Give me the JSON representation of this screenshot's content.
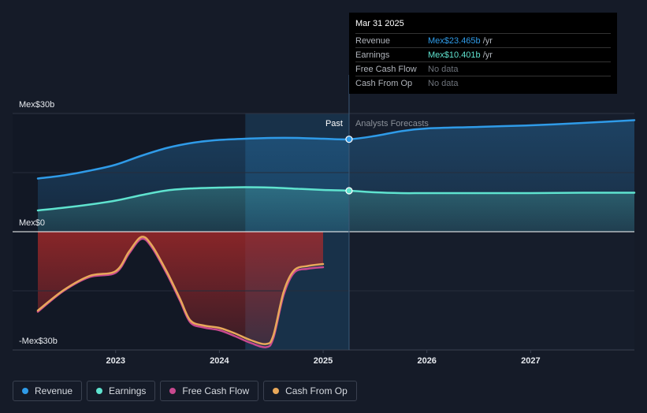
{
  "tooltip": {
    "date": "Mar 31 2025",
    "rows": [
      {
        "label": "Revenue",
        "value": "Mex$23.465b",
        "unit": " /yr",
        "color": "#2f9be8"
      },
      {
        "label": "Earnings",
        "value": "Mex$10.401b",
        "unit": " /yr",
        "color": "#5fe3cf"
      },
      {
        "label": "Free Cash Flow",
        "value": "No data",
        "unit": "",
        "color": ""
      },
      {
        "label": "Cash From Op",
        "value": "No data",
        "unit": "",
        "color": ""
      }
    ]
  },
  "legend": [
    {
      "label": "Revenue",
      "color": "#2f9be8"
    },
    {
      "label": "Earnings",
      "color": "#5fe3cf"
    },
    {
      "label": "Free Cash Flow",
      "color": "#c8498f"
    },
    {
      "label": "Cash From Op",
      "color": "#e8a85a"
    }
  ],
  "chart_data": {
    "type": "line",
    "ylim": [
      -30,
      30
    ],
    "y_unit": "Mex$ billions",
    "y_tick_labels": [
      {
        "value": 30,
        "label": "Mex$30b"
      },
      {
        "value": 0,
        "label": "Mex$0"
      },
      {
        "value": -30,
        "label": "-Mex$30b"
      }
    ],
    "x_ticks": [
      2023,
      2024,
      2025,
      2026,
      2027
    ],
    "xlim": [
      2022.25,
      2028.0
    ],
    "past_label": "Past",
    "forecast_label": "Analysts Forecasts",
    "past_end": 2025.25,
    "highlight_start": 2024.25,
    "series": [
      {
        "name": "Revenue",
        "color": "#2f9be8",
        "area": true,
        "points": [
          [
            2022.25,
            13.5
          ],
          [
            2022.5,
            14.3
          ],
          [
            2022.75,
            15.5
          ],
          [
            2023.0,
            17.0
          ],
          [
            2023.25,
            19.3
          ],
          [
            2023.5,
            21.3
          ],
          [
            2023.75,
            22.6
          ],
          [
            2024.0,
            23.3
          ],
          [
            2024.25,
            23.6
          ],
          [
            2024.5,
            23.8
          ],
          [
            2024.75,
            23.8
          ],
          [
            2025.0,
            23.6
          ],
          [
            2025.25,
            23.465
          ],
          [
            2025.5,
            24.3
          ],
          [
            2025.75,
            25.5
          ],
          [
            2026.0,
            26.2
          ],
          [
            2026.5,
            26.6
          ],
          [
            2027.0,
            27.0
          ],
          [
            2027.5,
            27.6
          ],
          [
            2028.0,
            28.3
          ]
        ]
      },
      {
        "name": "Earnings",
        "color": "#5fe3cf",
        "area": true,
        "points": [
          [
            2022.25,
            5.4
          ],
          [
            2022.5,
            6.1
          ],
          [
            2022.75,
            6.9
          ],
          [
            2023.0,
            7.9
          ],
          [
            2023.25,
            9.3
          ],
          [
            2023.5,
            10.5
          ],
          [
            2023.75,
            11.0
          ],
          [
            2024.0,
            11.2
          ],
          [
            2024.25,
            11.3
          ],
          [
            2024.5,
            11.2
          ],
          [
            2024.75,
            10.9
          ],
          [
            2025.0,
            10.6
          ],
          [
            2025.25,
            10.401
          ],
          [
            2025.5,
            10.0
          ],
          [
            2025.75,
            9.8
          ],
          [
            2026.0,
            9.8
          ],
          [
            2026.5,
            9.8
          ],
          [
            2027.0,
            9.8
          ],
          [
            2027.5,
            9.9
          ],
          [
            2028.0,
            9.9
          ]
        ]
      },
      {
        "name": "Free Cash Flow",
        "color": "#c8498f",
        "area": false,
        "points": [
          [
            2022.25,
            -20.3
          ],
          [
            2022.5,
            -15.0
          ],
          [
            2022.75,
            -11.5
          ],
          [
            2023.0,
            -10.4
          ],
          [
            2023.13,
            -5.5
          ],
          [
            2023.25,
            -1.8
          ],
          [
            2023.35,
            -4.0
          ],
          [
            2023.5,
            -11.0
          ],
          [
            2023.62,
            -17.5
          ],
          [
            2023.72,
            -23.0
          ],
          [
            2023.85,
            -24.3
          ],
          [
            2024.0,
            -25.0
          ],
          [
            2024.15,
            -26.5
          ],
          [
            2024.3,
            -28.2
          ],
          [
            2024.45,
            -29.3
          ],
          [
            2024.52,
            -27.0
          ],
          [
            2024.62,
            -16.0
          ],
          [
            2024.72,
            -10.4
          ],
          [
            2024.85,
            -9.4
          ],
          [
            2025.0,
            -9.0
          ]
        ]
      },
      {
        "name": "Cash From Op",
        "color": "#e8a85a",
        "area": false,
        "points": [
          [
            2022.25,
            -20.0
          ],
          [
            2022.5,
            -14.8
          ],
          [
            2022.75,
            -11.2
          ],
          [
            2023.0,
            -10.0
          ],
          [
            2023.13,
            -5.0
          ],
          [
            2023.25,
            -1.3
          ],
          [
            2023.35,
            -3.5
          ],
          [
            2023.5,
            -10.5
          ],
          [
            2023.62,
            -17.0
          ],
          [
            2023.72,
            -22.5
          ],
          [
            2023.85,
            -23.8
          ],
          [
            2024.0,
            -24.4
          ],
          [
            2024.15,
            -25.8
          ],
          [
            2024.3,
            -27.5
          ],
          [
            2024.45,
            -28.5
          ],
          [
            2024.52,
            -26.3
          ],
          [
            2024.62,
            -15.2
          ],
          [
            2024.72,
            -9.8
          ],
          [
            2024.85,
            -8.7
          ],
          [
            2025.0,
            -8.2
          ]
        ]
      }
    ],
    "markers": [
      {
        "series": "Revenue",
        "x": 2025.25,
        "y": 23.465
      },
      {
        "series": "Earnings",
        "x": 2025.25,
        "y": 10.401
      }
    ]
  }
}
